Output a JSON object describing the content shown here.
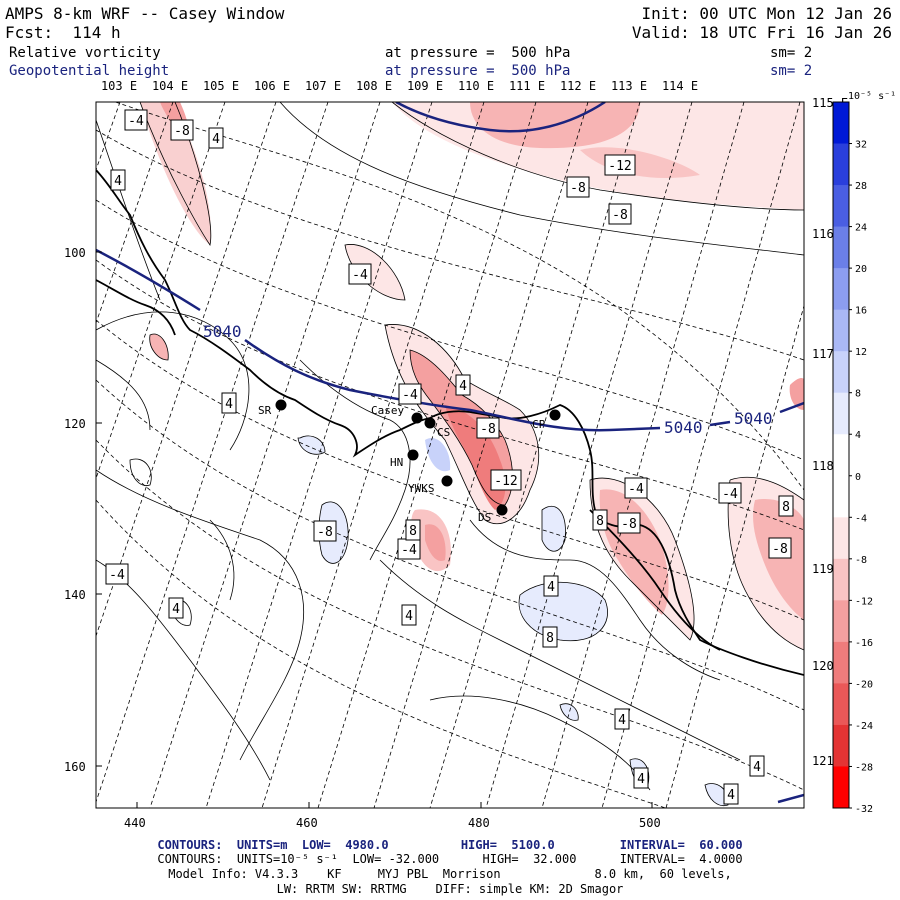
{
  "header": {
    "model": "AMPS 8-km WRF -- Casey Window",
    "fcst": "Fcst:  114 h",
    "init": "Init: 00 UTC Mon 12 Jan 26",
    "valid": "Valid: 18 UTC Fri 16 Jan 26"
  },
  "fields": [
    {
      "name": "Relative vorticity",
      "level": "at pressure =  500 hPa",
      "smooth": "sm= 2"
    },
    {
      "name": "Geopotential height",
      "level": "at pressure =  500 hPa",
      "smooth": "sm= 2"
    }
  ],
  "lon_labels_top": [
    "103 E",
    "104 E",
    "105 E",
    "106 E",
    "107 E",
    "108 E",
    "109 E",
    "110 E",
    "111 E",
    "112 E",
    "113 E",
    "114 E"
  ],
  "lon_labels_right": [
    "115 E",
    "116 E",
    "117 E",
    "118 E",
    "119 E",
    "120 E",
    "121 E"
  ],
  "x_ticks": [
    "440",
    "460",
    "480",
    "500"
  ],
  "y_ticks": [
    "100",
    "120",
    "140",
    "160"
  ],
  "colorbar": {
    "unit": "10⁻⁵ s⁻¹",
    "labels": [
      "32",
      "28",
      "24",
      "20",
      "16",
      "12",
      "8",
      "4",
      "0",
      "-4",
      "-8",
      "-12",
      "-16",
      "-20",
      "-24",
      "-28",
      "-32"
    ],
    "colors": [
      "#0019d6",
      "#2a3fdc",
      "#4a5ee2",
      "#6b7fe8",
      "#8c9df0",
      "#aab8f5",
      "#c8d2fa",
      "#e6ebfd",
      "#ffffff",
      "#ffffff",
      "#fde6e6",
      "#f9c4c4",
      "#f4a0a0",
      "#ef7c7c",
      "#ea5858",
      "#e43434",
      "#ff0000"
    ]
  },
  "stations": [
    {
      "label": "SR"
    },
    {
      "label": "Casey"
    },
    {
      "label": "CS"
    },
    {
      "label": "HN"
    },
    {
      "label": "YWKS"
    },
    {
      "label": "DS"
    },
    {
      "label": "CP"
    }
  ],
  "height_labels": [
    "5040",
    "5040",
    "5040"
  ],
  "vort_labels": [
    "-4",
    "-8",
    "4",
    "4",
    "-4",
    "4",
    "-4",
    "4",
    "-8",
    "-12",
    "-8",
    "-12",
    "-8",
    "-4",
    "-4",
    "-8",
    "-4",
    "-8",
    "8",
    "-8",
    "-4",
    "4",
    "4",
    "4",
    "8",
    "4",
    "4",
    "4",
    "4",
    "8",
    "8"
  ],
  "footer": {
    "line1_a": "CONTOURS:  UNITS=m  LOW=  4980.0",
    "line1_b": "HIGH=  5100.0",
    "line1_c": "INTERVAL=  60.000",
    "line2": "CONTOURS:  UNITS=10⁻⁵ s⁻¹  LOW= -32.000      HIGH=  32.000      INTERVAL=  4.0000",
    "line3": "Model Info: V4.3.3    KF     MYJ PBL  Morrison             8.0 km,  60 levels,",
    "line4": "LW: RRTM SW: RRTMG    DIFF: simple KM: 2D Smagor"
  }
}
